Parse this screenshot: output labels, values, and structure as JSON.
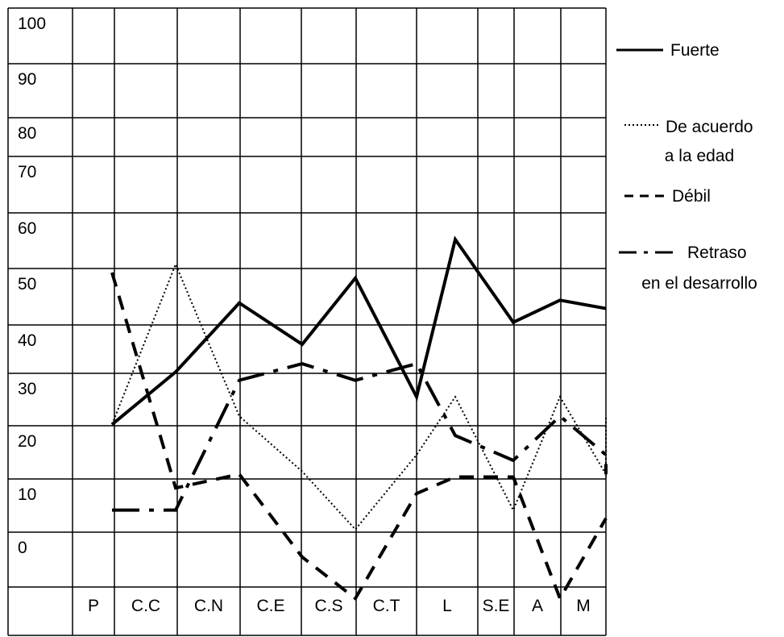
{
  "chart_data": {
    "type": "line",
    "categories": [
      "P",
      "C.C",
      "C.N",
      "C.E",
      "C.S",
      "C.T",
      "L",
      "S.E",
      "A",
      "M"
    ],
    "y_ticks": [
      "100",
      "90",
      "80",
      "70",
      "60",
      "50",
      "40",
      "30",
      "20",
      "10",
      "0"
    ],
    "ylim": [
      -10,
      100
    ],
    "grid": true,
    "legend_position": "right",
    "series": [
      {
        "name": "Fuerte",
        "style": "solid",
        "x": [
          "P",
          "C.C",
          "C.N",
          "C.E",
          "C.S",
          "C.T",
          "L",
          "S.E",
          "A",
          "M",
          "end"
        ],
        "values": [
          19.5,
          29,
          41.5,
          34,
          46,
          24.5,
          53,
          38,
          42,
          40.5,
          40.5
        ]
      },
      {
        "name": "De acuerdo a la edad",
        "style": "dotted",
        "x": [
          "P",
          "C.C",
          "C.N",
          "C.E",
          "C.S",
          "C.T",
          "L",
          "S.E",
          "A",
          "M",
          "end"
        ],
        "values": [
          19.5,
          48.5,
          21,
          11,
          0.5,
          14,
          24.5,
          4,
          24.5,
          10.5,
          21
        ]
      },
      {
        "name": "Débil",
        "style": "dashed",
        "x": [
          "P",
          "C.C",
          "C.N",
          "C.E",
          "C.S",
          "C.T",
          "L",
          "S.E",
          "A",
          "M",
          "end"
        ],
        "values": [
          47,
          8,
          10.5,
          -4.5,
          -12,
          7,
          10,
          10,
          -12,
          2.5,
          2.5
        ]
      },
      {
        "name": "Retraso en el desarrollo",
        "style": "dashdot",
        "x": [
          "P",
          "C.C",
          "C.N",
          "C.E",
          "C.S",
          "C.T",
          "L",
          "S.E",
          "A",
          "M",
          "end"
        ],
        "values": [
          4,
          4,
          27.5,
          30.5,
          27.5,
          30.5,
          17.5,
          13,
          21,
          14,
          10.5
        ]
      }
    ]
  },
  "legend": [
    {
      "lines": [
        "Fuerte"
      ],
      "style": "solid"
    },
    {
      "lines": [
        "De acuerdo",
        "a la edad"
      ],
      "style": "dotted"
    },
    {
      "lines": [
        "Débil"
      ],
      "style": "dashed"
    },
    {
      "lines": [
        "Retraso",
        "en el desarrollo"
      ],
      "style": "dashdot"
    }
  ],
  "colors": {
    "line": "#000000",
    "grid": "#000000",
    "background": "#ffffff"
  }
}
